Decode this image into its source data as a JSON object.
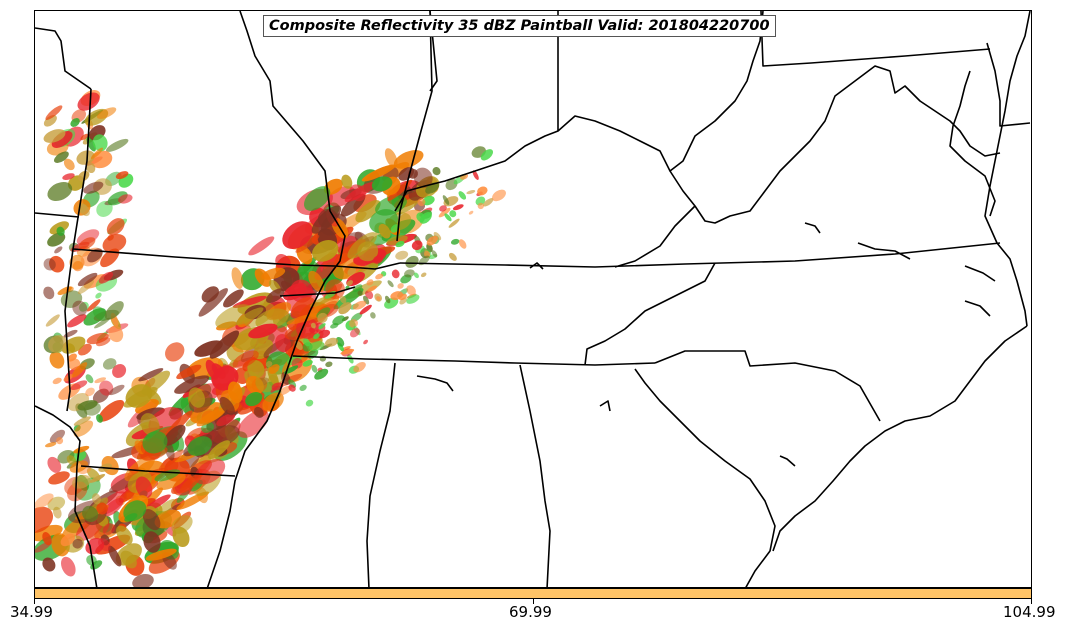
{
  "title": "Composite Reflectivity 35 dBZ Paintball Valid: 201804220700",
  "colorbar": {
    "color": "#ffc467",
    "ticks": [
      "34.99",
      "69.99",
      "104.99"
    ]
  },
  "colors": {
    "boundaries": "#000000",
    "paint": [
      "#e8400a",
      "#f07c00",
      "#b89a18",
      "#7e3222",
      "#2fa82a",
      "#e8222a",
      "#ff8c3a",
      "#5a7a22",
      "#48d848",
      "#c8a040"
    ]
  }
}
